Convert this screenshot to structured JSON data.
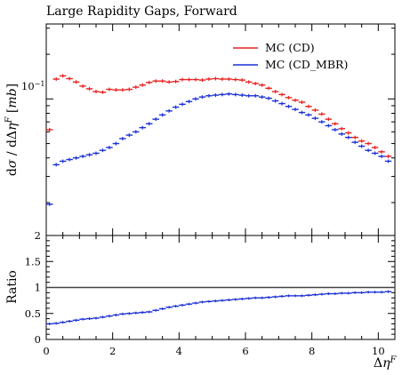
{
  "chart_data": [
    {
      "type": "line",
      "title": "Large Rapidity Gaps, Forward",
      "xlabel": "Δη^F",
      "ylabel": "dσ/dΔη^F [mb]",
      "ytick_label": "10⁻¹",
      "yscale": "log",
      "ylim": [
        0.012,
        0.32
      ],
      "xlim": [
        0,
        10.5
      ],
      "legend_position": "top-right",
      "colors": {
        "mc_cd": "#e8201e",
        "mc_cd_mbr": "#1a2fd6"
      },
      "x": [
        0.1,
        0.3,
        0.5,
        0.7,
        0.9,
        1.1,
        1.3,
        1.5,
        1.7,
        1.9,
        2.1,
        2.3,
        2.5,
        2.7,
        2.9,
        3.1,
        3.3,
        3.5,
        3.7,
        3.9,
        4.1,
        4.3,
        4.5,
        4.7,
        4.9,
        5.1,
        5.3,
        5.5,
        5.7,
        5.9,
        6.1,
        6.3,
        6.5,
        6.7,
        6.9,
        7.1,
        7.3,
        7.5,
        7.7,
        7.9,
        8.1,
        8.3,
        8.5,
        8.7,
        8.9,
        9.1,
        9.3,
        9.5,
        9.7,
        9.9,
        10.1,
        10.3
      ],
      "series": [
        {
          "name": "MC (CD)",
          "values": [
            0.062,
            0.136,
            0.143,
            0.137,
            0.13,
            0.122,
            0.117,
            0.112,
            0.111,
            0.116,
            0.115,
            0.115,
            0.116,
            0.12,
            0.124,
            0.129,
            0.132,
            0.132,
            0.13,
            0.131,
            0.135,
            0.135,
            0.135,
            0.134,
            0.136,
            0.137,
            0.136,
            0.136,
            0.135,
            0.134,
            0.13,
            0.127,
            0.124,
            0.118,
            0.112,
            0.107,
            0.102,
            0.098,
            0.095,
            0.089,
            0.084,
            0.079,
            0.073,
            0.068,
            0.063,
            0.059,
            0.055,
            0.052,
            0.05,
            0.047,
            0.044,
            0.041
          ]
        },
        {
          "name": "MC (CD_MBR)",
          "values": [
            0.0195,
            0.036,
            0.038,
            0.039,
            0.04,
            0.041,
            0.042,
            0.043,
            0.045,
            0.047,
            0.05,
            0.054,
            0.057,
            0.06,
            0.064,
            0.068,
            0.073,
            0.078,
            0.083,
            0.088,
            0.092,
            0.096,
            0.1,
            0.103,
            0.105,
            0.106,
            0.107,
            0.108,
            0.107,
            0.106,
            0.105,
            0.105,
            0.103,
            0.101,
            0.097,
            0.093,
            0.089,
            0.085,
            0.081,
            0.078,
            0.074,
            0.07,
            0.066,
            0.062,
            0.058,
            0.055,
            0.051,
            0.048,
            0.045,
            0.043,
            0.041,
            0.038
          ]
        }
      ]
    },
    {
      "type": "line",
      "ylabel": "Ratio",
      "xlabel": "Δη^F",
      "ylim": [
        0,
        2
      ],
      "xlim": [
        0,
        10.5
      ],
      "yticks": [
        "0",
        "0.5",
        "1",
        "1.5",
        "2"
      ],
      "xticks": [
        "0",
        "2",
        "4",
        "6",
        "8",
        "10"
      ],
      "reference_line": 1,
      "series": [
        {
          "name": "MC (CD_MBR)",
          "values": [
            0.3,
            0.31,
            0.33,
            0.35,
            0.37,
            0.39,
            0.4,
            0.41,
            0.43,
            0.45,
            0.47,
            0.49,
            0.5,
            0.51,
            0.52,
            0.53,
            0.56,
            0.59,
            0.62,
            0.64,
            0.66,
            0.68,
            0.7,
            0.72,
            0.73,
            0.74,
            0.75,
            0.76,
            0.77,
            0.78,
            0.79,
            0.8,
            0.8,
            0.81,
            0.82,
            0.83,
            0.84,
            0.84,
            0.84,
            0.85,
            0.86,
            0.87,
            0.88,
            0.88,
            0.89,
            0.89,
            0.9,
            0.9,
            0.91,
            0.91,
            0.91,
            0.92
          ]
        }
      ]
    }
  ],
  "legend": [
    "MC (CD)",
    "MC (CD_MBR)"
  ]
}
